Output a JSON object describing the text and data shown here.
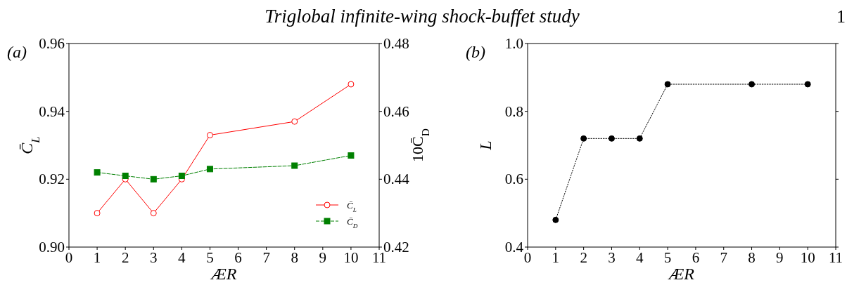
{
  "chart_data": [
    {
      "type": "line",
      "title": "Triglobal infinite-wing shock-buffet study",
      "annotations": [
        "(a)",
        "1"
      ],
      "xlabel": "ÆR",
      "ylabel": "C̄$_{L}$",
      "y2label": "10C̄$_{D}$",
      "x": [
        1,
        2,
        3,
        4,
        5,
        8,
        10
      ],
      "xlim": [
        0,
        11
      ],
      "xticks": [
        0,
        1,
        2,
        3,
        4,
        5,
        6,
        7,
        8,
        9,
        10,
        11
      ],
      "ylim": [
        0.9,
        0.96
      ],
      "yticks": [
        {
          "value": 0.9,
          "label": "0.90"
        },
        {
          "value": 0.92,
          "label": "0.92"
        },
        {
          "value": 0.94,
          "label": "0.94"
        },
        {
          "value": 0.96,
          "label": "0.96"
        }
      ],
      "y2lim": [
        0.42,
        0.48
      ],
      "y2ticks": [
        {
          "value": 0.42,
          "label": "0.42"
        },
        {
          "value": 0.44,
          "label": "0.44"
        },
        {
          "value": 0.46,
          "label": "0.46"
        },
        {
          "value": 0.48,
          "label": "0.48"
        }
      ],
      "grid": false,
      "legend": "bottom right",
      "series": [
        {
          "name": "C̄$_{L}$",
          "color": "#ff0000",
          "marker": "circle",
          "line_style": "solid",
          "values": [
            0.91,
            0.92,
            0.91,
            0.92,
            0.933,
            0.937,
            0.948
          ]
        },
        {
          "name": "C̄$_{D}$",
          "color": "#008000",
          "marker": "square",
          "line_style": "dashed",
          "axis": "y2",
          "values": [
            0.442,
            0.441,
            0.44,
            0.441,
            0.443,
            0.444,
            0.447
          ]
        }
      ]
    },
    {
      "type": "line",
      "annotations": [
        "(b)"
      ],
      "xlabel": "ÆR",
      "ylabel": "L",
      "x": [
        1,
        2,
        3,
        4,
        5,
        8,
        10
      ],
      "xlim": [
        0,
        11
      ],
      "xticks": [
        0,
        1,
        2,
        3,
        4,
        5,
        6,
        7,
        8,
        9,
        10,
        11
      ],
      "ylim": [
        0.4,
        1.0
      ],
      "yticks": [
        0.4,
        0.6,
        0.8,
        {
          "value": 1.0,
          "label": "1.0"
        }
      ],
      "grid": false,
      "legend": false,
      "marker": "circle",
      "line_style": "dotted",
      "series": [
        {
          "color": "#000000",
          "values": [
            0.48,
            0.72,
            0.72,
            0.72,
            0.88,
            0.88,
            0.88
          ]
        }
      ]
    }
  ]
}
